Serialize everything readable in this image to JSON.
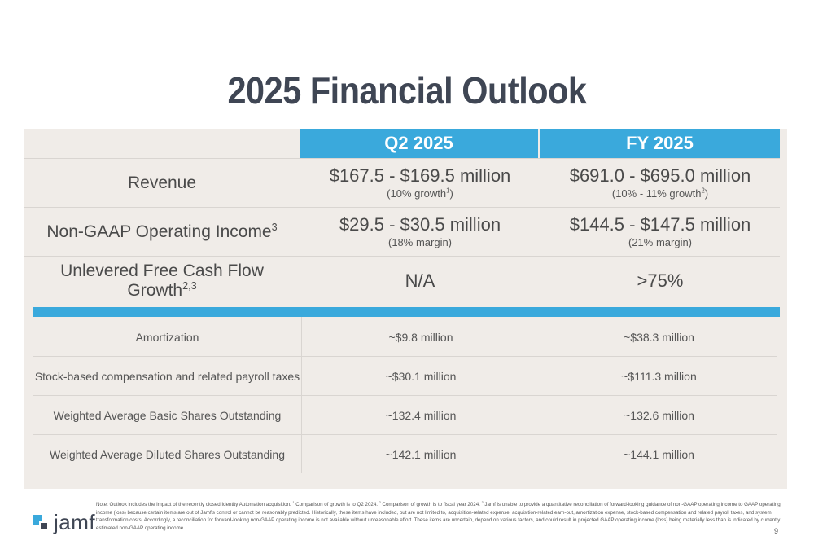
{
  "title": "2025 Financial Outlook",
  "columns": {
    "q2": "Q2 2025",
    "fy": "FY 2025"
  },
  "rows": [
    {
      "label": "Revenue",
      "label_sup": "",
      "q2_value": "$167.5 - $169.5 million",
      "q2_sub": "(10% growth",
      "q2_sub_sup": "1",
      "q2_sub_end": ")",
      "fy_value": "$691.0 - $695.0 million",
      "fy_sub": "(10% - 11% growth",
      "fy_sub_sup": "2",
      "fy_sub_end": ")"
    },
    {
      "label": "Non-GAAP Operating Income",
      "label_sup": "3",
      "q2_value": "$29.5 - $30.5 million",
      "q2_sub": "(18% margin)",
      "fy_value": "$144.5 - $147.5 million",
      "fy_sub": "(21% margin)"
    },
    {
      "label": "Unlevered Free Cash Flow Growth",
      "label_sup": "2,3",
      "q2_value": "N/A",
      "fy_value": ">75%"
    }
  ],
  "details": [
    {
      "label": "Amortization",
      "q2": "~$9.8 million",
      "fy": "~$38.3 million"
    },
    {
      "label": "Stock-based compensation and related payroll taxes",
      "q2": "~$30.1 million",
      "fy": "~$111.3 million"
    },
    {
      "label": "Weighted Average Basic Shares Outstanding",
      "q2": "~132.4 million",
      "fy": "~132.6 million"
    },
    {
      "label": "Weighted Average Diluted Shares Outstanding",
      "q2": "~142.1 million",
      "fy": "~144.1 million"
    }
  ],
  "note": {
    "lead": "Note: Outlook includes the impact of the recently closed Identity Automation acquisition.  ",
    "s1": "1",
    "t1": " Comparison of growth is to Q2 2024. ",
    "s2": "2",
    "t2": " Comparison of growth is to fiscal year 2024. ",
    "s3": "3",
    "t3": " Jamf is unable to provide a quantitative reconciliation of forward-looking guidance of non-GAAP operating income to GAAP operating income (loss) because certain items are out of Jamf's control or cannot be reasonably predicted. Historically, these items have included, but are not limited to, acquisition-related expense, acquisition-related earn-out, amortization expense, stock-based compensation and related payroll taxes, and system transformation costs. Accordingly, a reconciliation for forward-looking non-GAAP operating income is not available without unreasonable effort. These items are uncertain, depend on various factors, and could result in projected GAAP operating income (loss) being materially less than is indicated by currently estimated non-GAAP operating income."
  },
  "logo_text": "jamf",
  "page_number": "9",
  "colors": {
    "accent": "#3aa9dc",
    "panel": "#f0ece8",
    "title": "#3f4654"
  }
}
